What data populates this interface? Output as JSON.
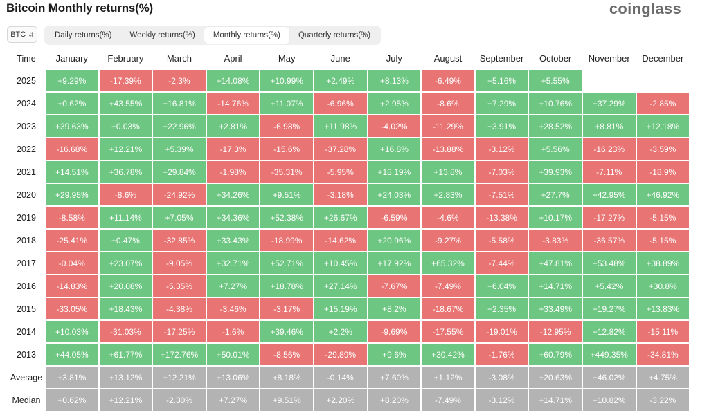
{
  "header": {
    "title": "Bitcoin Monthly returns(%)",
    "brand": "coinglass"
  },
  "coin_select": {
    "value": "BTC",
    "icon": "chevron-updown-icon"
  },
  "tabs": [
    {
      "label": "Daily returns(%)",
      "active": false
    },
    {
      "label": "Weekly returns(%)",
      "active": false
    },
    {
      "label": "Monthly returns(%)",
      "active": true
    },
    {
      "label": "Quarterly returns(%)",
      "active": false
    }
  ],
  "colors": {
    "positive": "#6dc682",
    "negative": "#e87474",
    "stat": "#b3b3b3"
  },
  "table": {
    "time_header": "Time",
    "months": [
      "January",
      "February",
      "March",
      "April",
      "May",
      "June",
      "July",
      "August",
      "September",
      "October",
      "November",
      "December"
    ],
    "rows": [
      {
        "year": "2025",
        "values": [
          "+9.29%",
          "-17.39%",
          "-2.3%",
          "+14.08%",
          "+10.99%",
          "+2.49%",
          "+8.13%",
          "-6.49%",
          "+5.16%",
          "+5.55%",
          "",
          ""
        ]
      },
      {
        "year": "2024",
        "values": [
          "+0.62%",
          "+43.55%",
          "+16.81%",
          "-14.76%",
          "+11.07%",
          "-6.96%",
          "+2.95%",
          "-8.6%",
          "+7.29%",
          "+10.76%",
          "+37.29%",
          "-2.85%"
        ]
      },
      {
        "year": "2023",
        "values": [
          "+39.63%",
          "+0.03%",
          "+22.96%",
          "+2.81%",
          "-6.98%",
          "+11.98%",
          "-4.02%",
          "-11.29%",
          "+3.91%",
          "+28.52%",
          "+8.81%",
          "+12.18%"
        ]
      },
      {
        "year": "2022",
        "values": [
          "-16.68%",
          "+12.21%",
          "+5.39%",
          "-17.3%",
          "-15.6%",
          "-37.28%",
          "+16.8%",
          "-13.88%",
          "-3.12%",
          "+5.56%",
          "-16.23%",
          "-3.59%"
        ]
      },
      {
        "year": "2021",
        "values": [
          "+14.51%",
          "+36.78%",
          "+29.84%",
          "-1.98%",
          "-35.31%",
          "-5.95%",
          "+18.19%",
          "+13.8%",
          "-7.03%",
          "+39.93%",
          "-7.11%",
          "-18.9%"
        ]
      },
      {
        "year": "2020",
        "values": [
          "+29.95%",
          "-8.6%",
          "-24.92%",
          "+34.26%",
          "+9.51%",
          "-3.18%",
          "+24.03%",
          "+2.83%",
          "-7.51%",
          "+27.7%",
          "+42.95%",
          "+46.92%"
        ]
      },
      {
        "year": "2019",
        "values": [
          "-8.58%",
          "+11.14%",
          "+7.05%",
          "+34.36%",
          "+52.38%",
          "+26.67%",
          "-6.59%",
          "-4.6%",
          "-13.38%",
          "+10.17%",
          "-17.27%",
          "-5.15%"
        ]
      },
      {
        "year": "2018",
        "values": [
          "-25.41%",
          "+0.47%",
          "-32.85%",
          "+33.43%",
          "-18.99%",
          "-14.62%",
          "+20.96%",
          "-9.27%",
          "-5.58%",
          "-3.83%",
          "-36.57%",
          "-5.15%"
        ]
      },
      {
        "year": "2017",
        "values": [
          "-0.04%",
          "+23.07%",
          "-9.05%",
          "+32.71%",
          "+52.71%",
          "+10.45%",
          "+17.92%",
          "+65.32%",
          "-7.44%",
          "+47.81%",
          "+53.48%",
          "+38.89%"
        ]
      },
      {
        "year": "2016",
        "values": [
          "-14.83%",
          "+20.08%",
          "-5.35%",
          "+7.27%",
          "+18.78%",
          "+27.14%",
          "-7.67%",
          "-7.49%",
          "+6.04%",
          "+14.71%",
          "+5.42%",
          "+30.8%"
        ]
      },
      {
        "year": "2015",
        "values": [
          "-33.05%",
          "+18.43%",
          "-4.38%",
          "-3.46%",
          "-3.17%",
          "+15.19%",
          "+8.2%",
          "-18.67%",
          "+2.35%",
          "+33.49%",
          "+19.27%",
          "+13.83%"
        ]
      },
      {
        "year": "2014",
        "values": [
          "+10.03%",
          "-31.03%",
          "-17.25%",
          "-1.6%",
          "+39.46%",
          "+2.2%",
          "-9.69%",
          "-17.55%",
          "-19.01%",
          "-12.95%",
          "+12.82%",
          "-15.11%"
        ]
      },
      {
        "year": "2013",
        "values": [
          "+44.05%",
          "+61.77%",
          "+172.76%",
          "+50.01%",
          "-8.56%",
          "-29.89%",
          "+9.6%",
          "+30.42%",
          "-1.76%",
          "+60.79%",
          "+449.35%",
          "-34.81%"
        ]
      }
    ],
    "stats": [
      {
        "label": "Average",
        "values": [
          "+3.81%",
          "+13.12%",
          "+12.21%",
          "+13.06%",
          "+8.18%",
          "-0.14%",
          "+7.60%",
          "+1.12%",
          "-3.08%",
          "+20.63%",
          "+46.02%",
          "+4.75%"
        ]
      },
      {
        "label": "Median",
        "values": [
          "+0.62%",
          "+12.21%",
          "-2.30%",
          "+7.27%",
          "+9.51%",
          "+2.20%",
          "+8.20%",
          "-7.49%",
          "-3.12%",
          "+14.71%",
          "+10.82%",
          "-3.22%"
        ]
      }
    ]
  }
}
